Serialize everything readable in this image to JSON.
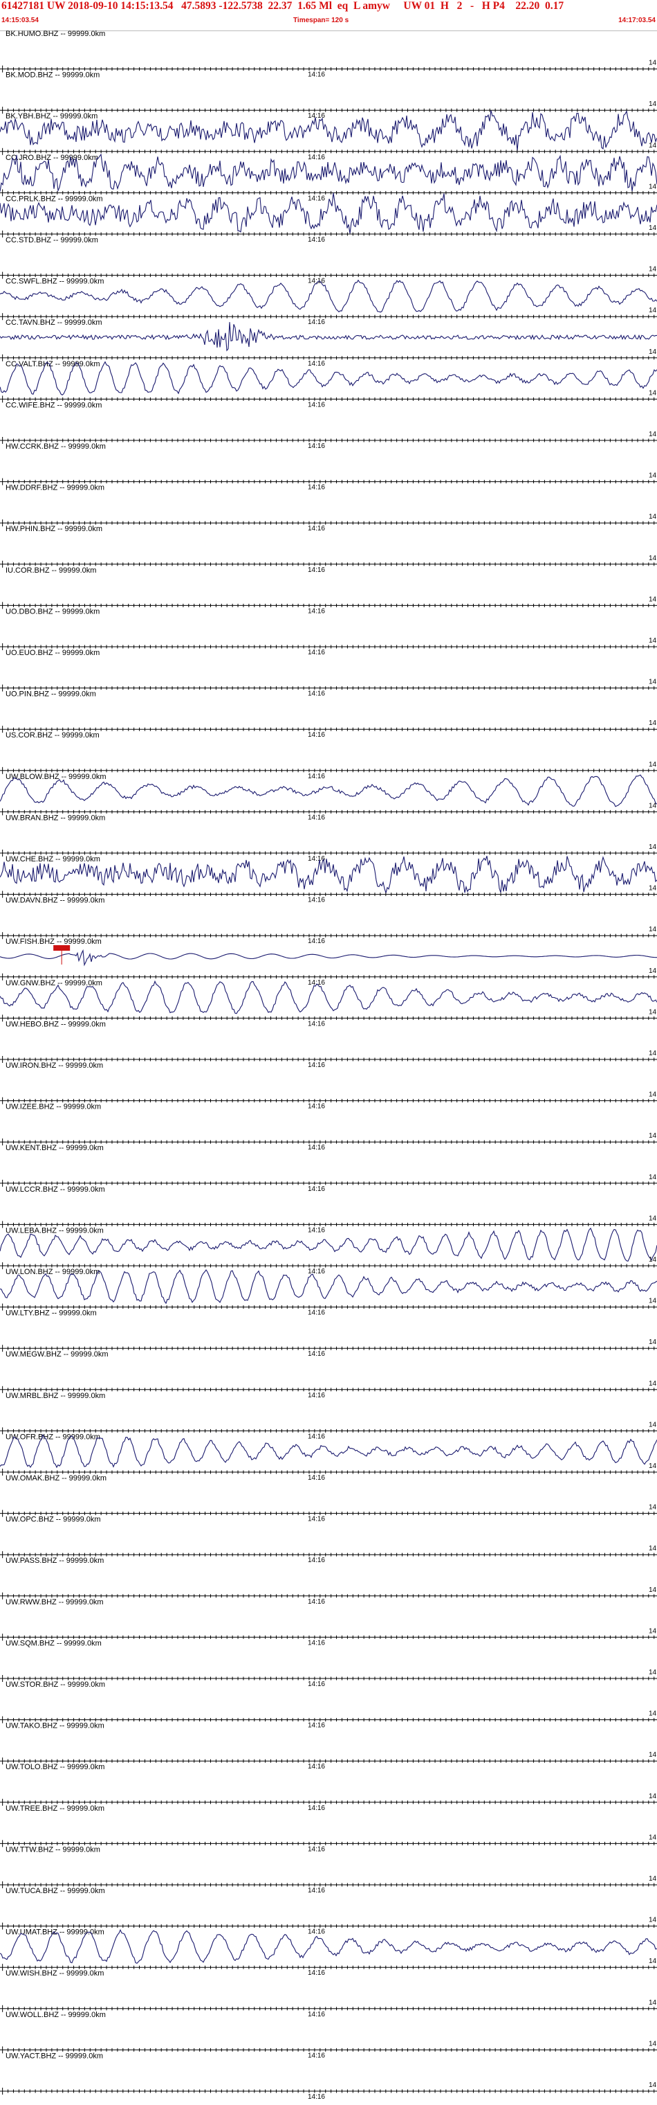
{
  "header": {
    "title": "61427181 UW 2018-09-10 14:15:13.54   47.5893 -122.5738  22.37  1.65 Ml  eq  L amyw     UW 01  H   2   -   H P4    22.20  0.17",
    "start_time": "14:15:03.54",
    "timespan": "Timespan= 120 s",
    "end_time": "14:17:03.54"
  },
  "colors": {
    "header_text": "#d81010",
    "trace": "#1a1a6e",
    "axis": "#000000",
    "pick": "#cc1111"
  },
  "chart_data": {
    "type": "line",
    "title": "",
    "xlabel": "",
    "ylabel": "",
    "x_range_s": [
      0,
      120
    ],
    "tick_label": "14:16",
    "tick_label_time_s": 56.46,
    "pick": {
      "trace": "UW.FISH.BHZ",
      "time_s": 10.0,
      "label": ""
    },
    "traces": [
      {
        "label": "BK.HUMO.BHZ -- 99999.0km",
        "activity": "none"
      },
      {
        "label": "BK.MOD.BHZ -- 99999.0km",
        "activity": "none"
      },
      {
        "label": "BK.YBH.BHZ -- 99999.0km",
        "activity": "noisy"
      },
      {
        "label": "CC.JRO.BHZ -- 99999.0km",
        "activity": "noisy"
      },
      {
        "label": "CC.PRLK.BHZ -- 99999.0km",
        "activity": "noisy"
      },
      {
        "label": "CC.STD.BHZ -- 99999.0km",
        "activity": "none"
      },
      {
        "label": "CC.SWFL.BHZ -- 99999.0km",
        "activity": "wave"
      },
      {
        "label": "CC.TAVN.BHZ -- 99999.0km",
        "activity": "burst"
      },
      {
        "label": "CC.VALT.BHZ -- 99999.0km",
        "activity": "wave"
      },
      {
        "label": "CC.WIFE.BHZ -- 99999.0km",
        "activity": "none"
      },
      {
        "label": "HW.CCRK.BHZ -- 99999.0km",
        "activity": "none"
      },
      {
        "label": "HW.DDRF.BHZ -- 99999.0km",
        "activity": "none"
      },
      {
        "label": "HW.PHIN.BHZ -- 99999.0km",
        "activity": "none"
      },
      {
        "label": "IU.COR.BHZ -- 99999.0km",
        "activity": "none"
      },
      {
        "label": "UO.DBO.BHZ -- 99999.0km",
        "activity": "none"
      },
      {
        "label": "UO.EUO.BHZ -- 99999.0km",
        "activity": "none"
      },
      {
        "label": "UO.PIN.BHZ -- 99999.0km",
        "activity": "none"
      },
      {
        "label": "US.COR.BHZ -- 99999.0km",
        "activity": "none"
      },
      {
        "label": "UW.BLOW.BHZ -- 99999.0km",
        "activity": "wave"
      },
      {
        "label": "UW.BRAN.BHZ -- 99999.0km",
        "activity": "none"
      },
      {
        "label": "UW.CHE.BHZ -- 99999.0km",
        "activity": "noisy"
      },
      {
        "label": "UW.DAVN.BHZ -- 99999.0km",
        "activity": "none"
      },
      {
        "label": "UW.FISH.BHZ -- 99999.0km",
        "activity": "pick"
      },
      {
        "label": "UW.GNW.BHZ -- 99999.0km",
        "activity": "wave"
      },
      {
        "label": "UW.HEBO.BHZ -- 99999.0km",
        "activity": "none"
      },
      {
        "label": "UW.IRON.BHZ -- 99999.0km",
        "activity": "none"
      },
      {
        "label": "UW.IZEE.BHZ -- 99999.0km",
        "activity": "none"
      },
      {
        "label": "UW.KENT.BHZ -- 99999.0km",
        "activity": "none"
      },
      {
        "label": "UW.LCCR.BHZ -- 99999.0km",
        "activity": "none"
      },
      {
        "label": "UW.LEBA.BHZ -- 99999.0km",
        "activity": "wave"
      },
      {
        "label": "UW.LON.BHZ -- 99999.0km",
        "activity": "wave"
      },
      {
        "label": "UW.LTY.BHZ -- 99999.0km",
        "activity": "none"
      },
      {
        "label": "UW.MEGW.BHZ -- 99999.0km",
        "activity": "none"
      },
      {
        "label": "UW.MRBL.BHZ -- 99999.0km",
        "activity": "none"
      },
      {
        "label": "UW.OFR.BHZ -- 99999.0km",
        "activity": "wave"
      },
      {
        "label": "UW.OMAK.BHZ -- 99999.0km",
        "activity": "none"
      },
      {
        "label": "UW.OPC.BHZ -- 99999.0km",
        "activity": "none"
      },
      {
        "label": "UW.PASS.BHZ -- 99999.0km",
        "activity": "none"
      },
      {
        "label": "UW.RWW.BHZ -- 99999.0km",
        "activity": "none"
      },
      {
        "label": "UW.SQM.BHZ -- 99999.0km",
        "activity": "none"
      },
      {
        "label": "UW.STOR.BHZ -- 99999.0km",
        "activity": "none"
      },
      {
        "label": "UW.TAKO.BHZ -- 99999.0km",
        "activity": "none"
      },
      {
        "label": "UW.TOLO.BHZ -- 99999.0km",
        "activity": "none"
      },
      {
        "label": "UW.TREE.BHZ -- 99999.0km",
        "activity": "none"
      },
      {
        "label": "UW.TTW.BHZ -- 99999.0km",
        "activity": "none"
      },
      {
        "label": "UW.TUCA.BHZ -- 99999.0km",
        "activity": "none"
      },
      {
        "label": "UW.UMAT.BHZ -- 99999.0km",
        "activity": "wave"
      },
      {
        "label": "UW.WISH.BHZ -- 99999.0km",
        "activity": "none"
      },
      {
        "label": "UW.WOLL.BHZ -- 99999.0km",
        "activity": "none"
      },
      {
        "label": "UW.YACT.BHZ -- 99999.0km",
        "activity": "none"
      }
    ]
  }
}
